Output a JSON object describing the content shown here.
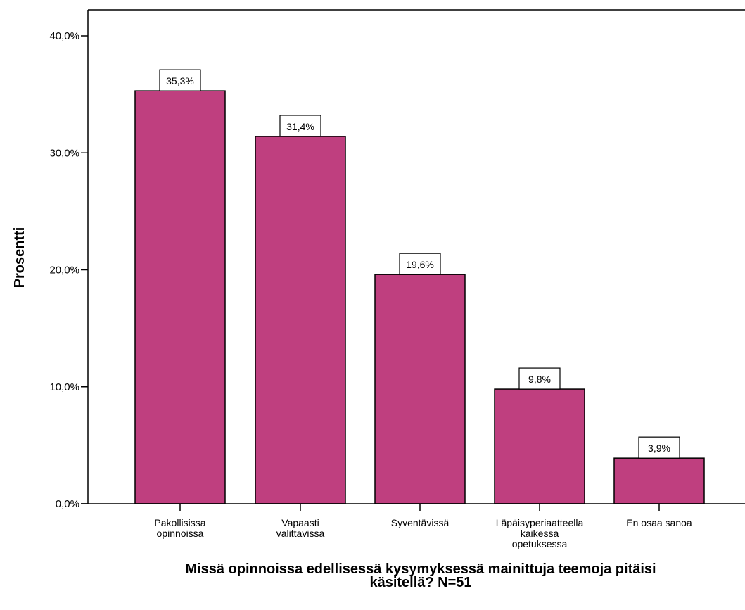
{
  "chart_data": {
    "type": "bar",
    "categories": [
      [
        "Pakollisissa",
        "opinnoissa"
      ],
      [
        "Vapaasti",
        "valittavissa"
      ],
      [
        "Syventävissä"
      ],
      [
        "Läpäisyperiaatteella",
        "kaikessa",
        "opetuksessa"
      ],
      [
        "En osaa sanoa"
      ]
    ],
    "values": [
      35.3,
      31.4,
      19.6,
      9.8,
      3.9
    ],
    "value_labels": [
      "35,3%",
      "31,4%",
      "19,6%",
      "9,8%",
      "3,9%"
    ],
    "ylabel": "Prosentti",
    "xlabel_lines": [
      "Missä opinnoissa edellisessä kysymyksessä mainittuja teemoja pitäisi",
      "käsitellä? N=51"
    ],
    "ylim": [
      0,
      40
    ],
    "yticks": [
      0,
      10,
      20,
      30,
      40
    ],
    "ytick_labels": [
      "0,0%",
      "10,0%",
      "20,0%",
      "30,0%",
      "40,0%"
    ],
    "grid": false,
    "bar_color": "#bf3f7f",
    "edge_color": "#000000"
  }
}
